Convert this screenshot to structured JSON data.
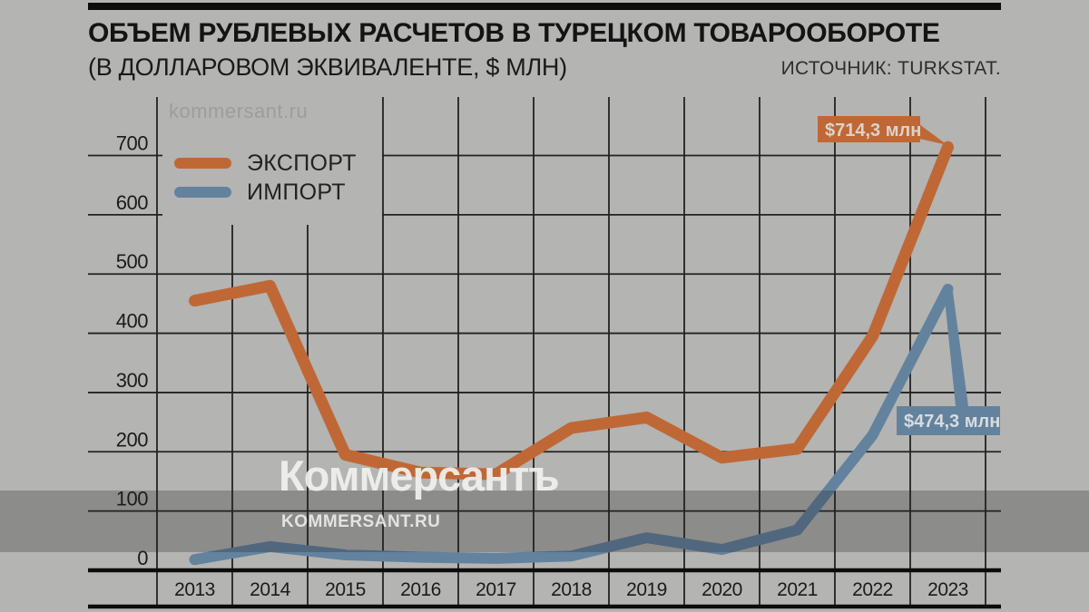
{
  "header": {
    "title": "ОБЪЕМ РУБЛЕВЫХ РАСЧЕТОВ В ТУРЕЦКОМ ТОВАРООБОРОТЕ",
    "subtitle": "(В ДОЛЛАРОВОМ ЭКВИВАЛЕНТЕ, $ МЛН)",
    "source": "ИСТОЧНИК: TURKSTAT."
  },
  "watermarks": {
    "top": "kommersant.ru",
    "center": "Коммерсантъ",
    "center_sub": "KOMMERSANT.RU"
  },
  "legend": {
    "export_label": "ЭКСПОРТ",
    "import_label": "ИМПОРТ"
  },
  "callouts": {
    "export": "$714,3 млн",
    "import": "$474,3 млн"
  },
  "colors": {
    "background": "#b4b4b2",
    "export": "#bf6836",
    "import": "#63829e"
  },
  "chart_data": {
    "type": "line",
    "title": "ОБЪЕМ РУБЛЕВЫХ РАСЧЕТОВ В ТУРЕЦКОМ ТОВАРООБОРОТЕ (В ДОЛЛАРОВОМ ЭКВИВАЛЕНТЕ, $ МЛН)",
    "source": "TURKSTAT",
    "categories": [
      "2013",
      "2014",
      "2015",
      "2016",
      "2017",
      "2018",
      "2019",
      "2020",
      "2021",
      "2022",
      "2023"
    ],
    "series": [
      {
        "name": "ЭКСПОРТ",
        "color": "#bf6836",
        "values": [
          455,
          480,
          195,
          165,
          162,
          240,
          258,
          190,
          205,
          395,
          714.3
        ]
      },
      {
        "name": "ИМПОРТ",
        "color": "#63829e",
        "values": [
          18,
          40,
          26,
          22,
          20,
          24,
          55,
          35,
          68,
          228,
          474.3
        ]
      }
    ],
    "ylabel": "$ млн",
    "ylim": [
      0,
      700
    ],
    "yticks": [
      0,
      100,
      200,
      300,
      400,
      500,
      600,
      700
    ],
    "grid": true,
    "legend_position": "top-left",
    "annotations": [
      {
        "series": "ЭКСПОРТ",
        "category": "2023",
        "label": "$714,3 млн"
      },
      {
        "series": "ИМПОРТ",
        "category": "2023",
        "label": "$474,3 млн"
      }
    ]
  }
}
